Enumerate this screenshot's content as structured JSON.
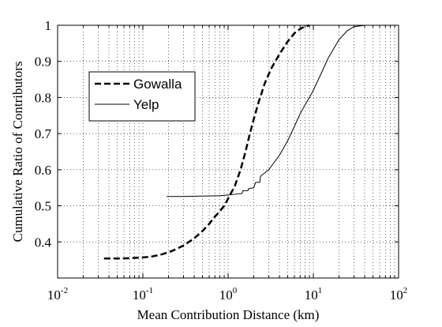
{
  "chart_data": {
    "type": "line",
    "title": "",
    "xlabel": "Mean Contribution Distance (km)",
    "ylabel": "Cumulative Ratio of Contributors",
    "xscale": "log",
    "xlim": [
      0.01,
      100
    ],
    "ylim": [
      0.3,
      1.0
    ],
    "grid": "dotted",
    "legend_position": "top-left",
    "x_tick_labels": [
      {
        "base": "10",
        "exp": "-2",
        "value": 0.01
      },
      {
        "base": "10",
        "exp": "-1",
        "value": 0.1
      },
      {
        "base": "10",
        "exp": "0",
        "value": 1
      },
      {
        "base": "10",
        "exp": "1",
        "value": 10
      },
      {
        "base": "10",
        "exp": "2",
        "value": 100
      }
    ],
    "y_tick_labels": [
      "0.4",
      "0.5",
      "0.6",
      "0.7",
      "0.8",
      "0.9",
      "1"
    ],
    "y_tick_values": [
      0.4,
      0.5,
      0.6,
      0.7,
      0.8,
      0.9,
      1.0
    ],
    "series": [
      {
        "name": "Gowalla",
        "style": "dashed",
        "color": "#000000",
        "points": [
          [
            0.035,
            0.354
          ],
          [
            0.05,
            0.354
          ],
          [
            0.07,
            0.355
          ],
          [
            0.1,
            0.357
          ],
          [
            0.13,
            0.36
          ],
          [
            0.17,
            0.366
          ],
          [
            0.22,
            0.375
          ],
          [
            0.3,
            0.39
          ],
          [
            0.4,
            0.41
          ],
          [
            0.5,
            0.43
          ],
          [
            0.6,
            0.45
          ],
          [
            0.7,
            0.47
          ],
          [
            0.8,
            0.485
          ],
          [
            0.9,
            0.5
          ],
          [
            1.0,
            0.52
          ],
          [
            1.2,
            0.555
          ],
          [
            1.4,
            0.6
          ],
          [
            1.6,
            0.65
          ],
          [
            1.8,
            0.7
          ],
          [
            2.0,
            0.74
          ],
          [
            2.3,
            0.79
          ],
          [
            2.7,
            0.84
          ],
          [
            3.2,
            0.88
          ],
          [
            4.0,
            0.92
          ],
          [
            5.0,
            0.955
          ],
          [
            6.0,
            0.978
          ],
          [
            7.0,
            0.99
          ],
          [
            8.0,
            0.997
          ],
          [
            9.0,
            1.0
          ]
        ]
      },
      {
        "name": "Yelp",
        "style": "solid",
        "color": "#000000",
        "points": [
          [
            0.19,
            0.526
          ],
          [
            0.3,
            0.526
          ],
          [
            0.5,
            0.527
          ],
          [
            0.8,
            0.528
          ],
          [
            1.0,
            0.53
          ],
          [
            1.2,
            0.532
          ],
          [
            1.45,
            0.534
          ],
          [
            1.5,
            0.542
          ],
          [
            1.7,
            0.542
          ],
          [
            1.75,
            0.548
          ],
          [
            2.0,
            0.55
          ],
          [
            2.1,
            0.565
          ],
          [
            2.35,
            0.565
          ],
          [
            2.4,
            0.582
          ],
          [
            3.0,
            0.6
          ],
          [
            4.0,
            0.64
          ],
          [
            5.0,
            0.68
          ],
          [
            6.0,
            0.72
          ],
          [
            7.0,
            0.755
          ],
          [
            8.0,
            0.78
          ],
          [
            9.0,
            0.8
          ],
          [
            10.0,
            0.82
          ],
          [
            12.0,
            0.86
          ],
          [
            15.0,
            0.91
          ],
          [
            20.0,
            0.96
          ],
          [
            25.0,
            0.985
          ],
          [
            30.0,
            0.996
          ],
          [
            40.0,
            1.0
          ]
        ]
      }
    ]
  }
}
